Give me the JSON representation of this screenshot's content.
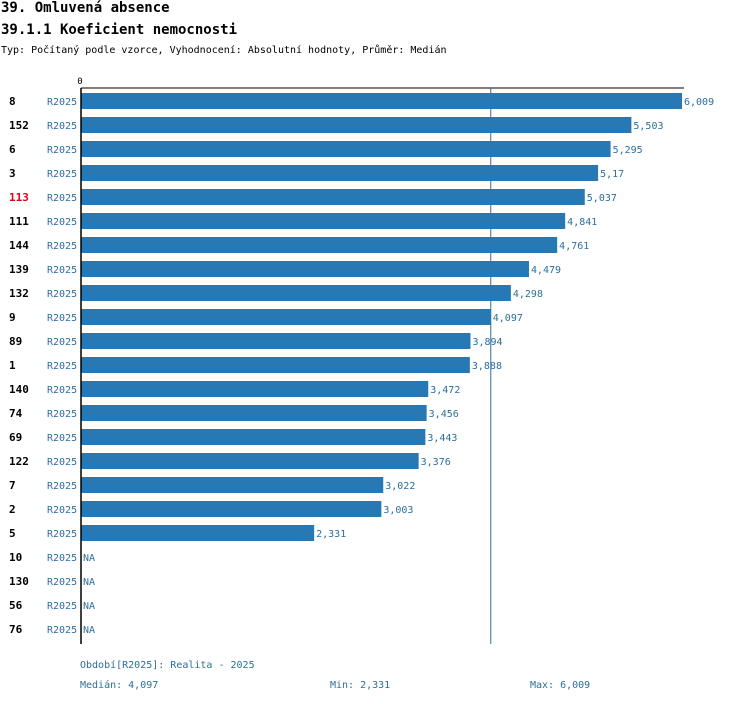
{
  "header": {
    "title": "39. Omluvená absence",
    "subtitle": "39.1.1 Koeficient nemocnosti",
    "type_line": "Typ: Počítaný podle vzorce, Vyhodnocení: Absolutní hodnoty, Průměr: Medián"
  },
  "chart_data": {
    "type": "bar",
    "orientation": "horizontal",
    "axis_zero_label": "0",
    "xlim": [
      0,
      6.009
    ],
    "categories": [
      "8",
      "152",
      "6",
      "3",
      "113",
      "111",
      "144",
      "139",
      "132",
      "9",
      "89",
      "1",
      "140",
      "74",
      "69",
      "122",
      "7",
      "2",
      "5",
      "10",
      "130",
      "56",
      "76"
    ],
    "highlight_category": "113",
    "series_label": "R2025",
    "values": [
      6.009,
      5.503,
      5.295,
      5.17,
      5.037,
      4.841,
      4.761,
      4.479,
      4.298,
      4.097,
      3.894,
      3.888,
      3.472,
      3.456,
      3.443,
      3.376,
      3.022,
      3.003,
      2.331,
      null,
      null,
      null,
      null
    ],
    "value_labels": [
      "6,009",
      "5,503",
      "5,295",
      "5,17",
      "5,037",
      "4,841",
      "4,761",
      "4,479",
      "4,298",
      "4,097",
      "3,894",
      "3,888",
      "3,472",
      "3,456",
      "3,443",
      "3,376",
      "3,022",
      "3,003",
      "2,331",
      "NA",
      "NA",
      "NA",
      "NA"
    ],
    "median": 4.097
  },
  "footer": {
    "period": "Období[R2025]: Realita - 2025",
    "median": "Medián: 4,097",
    "min": "Min: 2,331",
    "max": "Max: 6,009"
  },
  "colors": {
    "bar": "#2878b4",
    "label": "#2b6f9c",
    "highlight": "#e0001a",
    "text": "#000000"
  }
}
